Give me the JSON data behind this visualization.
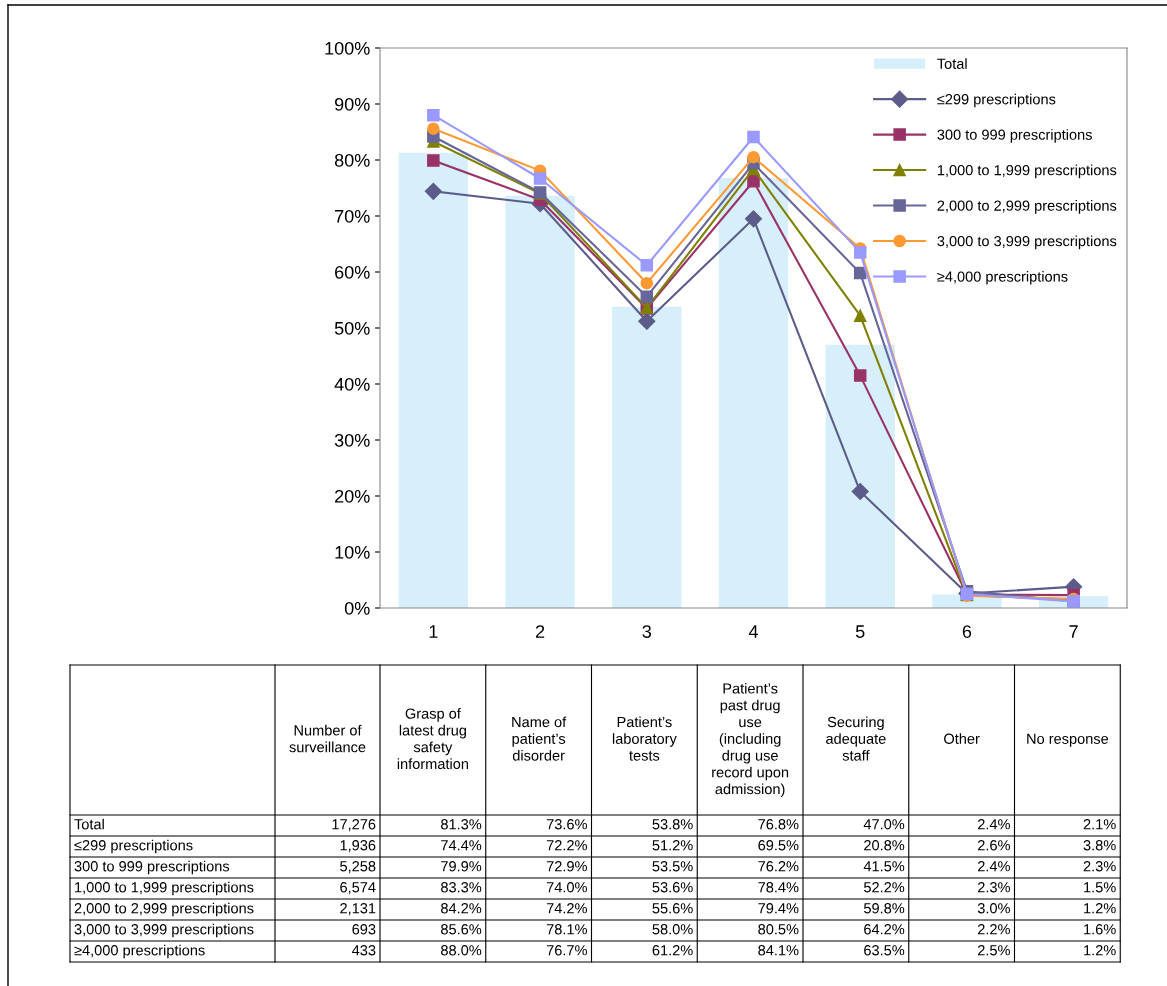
{
  "chart_data": {
    "type": "line",
    "categories": [
      "1",
      "2",
      "3",
      "4",
      "5",
      "6",
      "7"
    ],
    "ylim": [
      0,
      100
    ],
    "yticks": [
      {
        "value": 0,
        "label": "0%"
      },
      {
        "value": 10,
        "label": "10%"
      },
      {
        "value": 20,
        "label": "20%"
      },
      {
        "value": 30,
        "label": "30%"
      },
      {
        "value": 40,
        "label": "40%"
      },
      {
        "value": 50,
        "label": "50%"
      },
      {
        "value": 60,
        "label": "60%"
      },
      {
        "value": 70,
        "label": "70%"
      },
      {
        "value": 80,
        "label": "80%"
      },
      {
        "value": 90,
        "label": "90%"
      },
      {
        "value": 100,
        "label": "100%"
      }
    ],
    "grid": false,
    "legend": "top right",
    "annotations": [
      "Number of\nsurveillance",
      "Grasp of\nlatest drug\nsafety\ninformation",
      "Name of\npatient’s\ndisorder",
      "Patient’s\nlaboratory\ntests",
      "Patient’s\npast drug\nuse\n(including\ndrug use\nrecord upon\nadmission)",
      "Securing\nadequate\nstaff",
      "Other",
      "No response",
      "17,276",
      "1,936",
      "5,258",
      "6,574",
      "2,131",
      "693",
      "433"
    ],
    "series": [
      {
        "name": "Total",
        "type": "bar",
        "color": "#d6effa",
        "values": [
          81.3,
          73.6,
          53.8,
          76.8,
          47.0,
          2.4,
          2.1
        ],
        "value_labels": [
          "81.3%",
          "73.6%",
          "53.8%",
          "76.8%",
          "47.0%",
          "2.4%",
          "2.1%"
        ]
      },
      {
        "name": "≤299 prescriptions",
        "marker": "diamond",
        "color": "#5c5c8a",
        "values": [
          74.4,
          72.2,
          51.2,
          69.5,
          20.8,
          2.6,
          3.8
        ],
        "value_labels": [
          "74.4%",
          "72.2%",
          "51.2%",
          "69.5%",
          "20.8%",
          "2.6%",
          "3.8%"
        ]
      },
      {
        "name": "300 to 999 prescriptions",
        "marker": "square",
        "color": "#993366",
        "values": [
          79.9,
          72.9,
          53.5,
          76.2,
          41.5,
          2.4,
          2.3
        ],
        "value_labels": [
          "79.9%",
          "72.9%",
          "53.5%",
          "76.2%",
          "41.5%",
          "2.4%",
          "2.3%"
        ]
      },
      {
        "name": "1,000 to 1,999 prescriptions",
        "marker": "triangle",
        "color": "#808000",
        "values": [
          83.3,
          74.0,
          53.6,
          78.4,
          52.2,
          2.3,
          1.5
        ],
        "value_labels": [
          "83.3%",
          "74.0%",
          "53.6%",
          "78.4%",
          "52.2%",
          "2.3%",
          "1.5%"
        ]
      },
      {
        "name": "2,000 to 2,999 prescriptions",
        "marker": "square",
        "color": "#666699",
        "values": [
          84.2,
          74.2,
          55.6,
          79.4,
          59.8,
          3.0,
          1.2
        ],
        "value_labels": [
          "84.2%",
          "74.2%",
          "55.6%",
          "79.4%",
          "59.8%",
          "3.0%",
          "1.2%"
        ]
      },
      {
        "name": "3,000 to 3,999 prescriptions",
        "marker": "circle",
        "color": "#ff9933",
        "values": [
          85.6,
          78.1,
          58.0,
          80.5,
          64.2,
          2.2,
          1.6
        ],
        "value_labels": [
          "85.6%",
          "78.1%",
          "58.0%",
          "80.5%",
          "64.2%",
          "2.2%",
          "1.6%"
        ]
      },
      {
        "name": "≥4,000 prescriptions",
        "marker": "square",
        "color": "#9999ff",
        "values": [
          88.0,
          76.7,
          61.2,
          84.1,
          63.5,
          2.5,
          1.2
        ],
        "value_labels": [
          "88.0%",
          "76.7%",
          "61.2%",
          "84.1%",
          "63.5%",
          "2.5%",
          "1.2%"
        ]
      }
    ]
  }
}
